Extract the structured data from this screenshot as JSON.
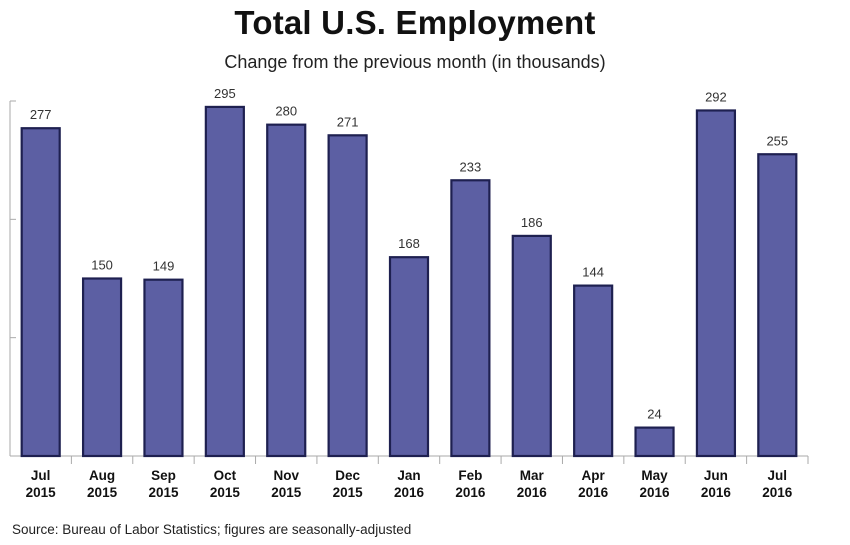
{
  "chart_data": {
    "type": "bar",
    "title": "Total U.S. Employment",
    "subtitle": "Change from the previous month (in thousands)",
    "categories": [
      [
        "Jul",
        "2015"
      ],
      [
        "Aug",
        "2015"
      ],
      [
        "Sep",
        "2015"
      ],
      [
        "Oct",
        "2015"
      ],
      [
        "Nov",
        "2015"
      ],
      [
        "Dec",
        "2015"
      ],
      [
        "Jan",
        "2016"
      ],
      [
        "Feb",
        "2016"
      ],
      [
        "Mar",
        "2016"
      ],
      [
        "Apr",
        "2016"
      ],
      [
        "May",
        "2016"
      ],
      [
        "Jun",
        "2016"
      ],
      [
        "Jul",
        "2016"
      ]
    ],
    "values": [
      277,
      150,
      149,
      295,
      280,
      271,
      168,
      233,
      186,
      144,
      24,
      292,
      255
    ],
    "ylim": [
      0,
      300
    ],
    "bar_color": "#5c5fa3",
    "bar_edge_color": "#1e2050"
  },
  "source": "Source: Bureau of Labor Statistics; figures are seasonally-adjusted"
}
